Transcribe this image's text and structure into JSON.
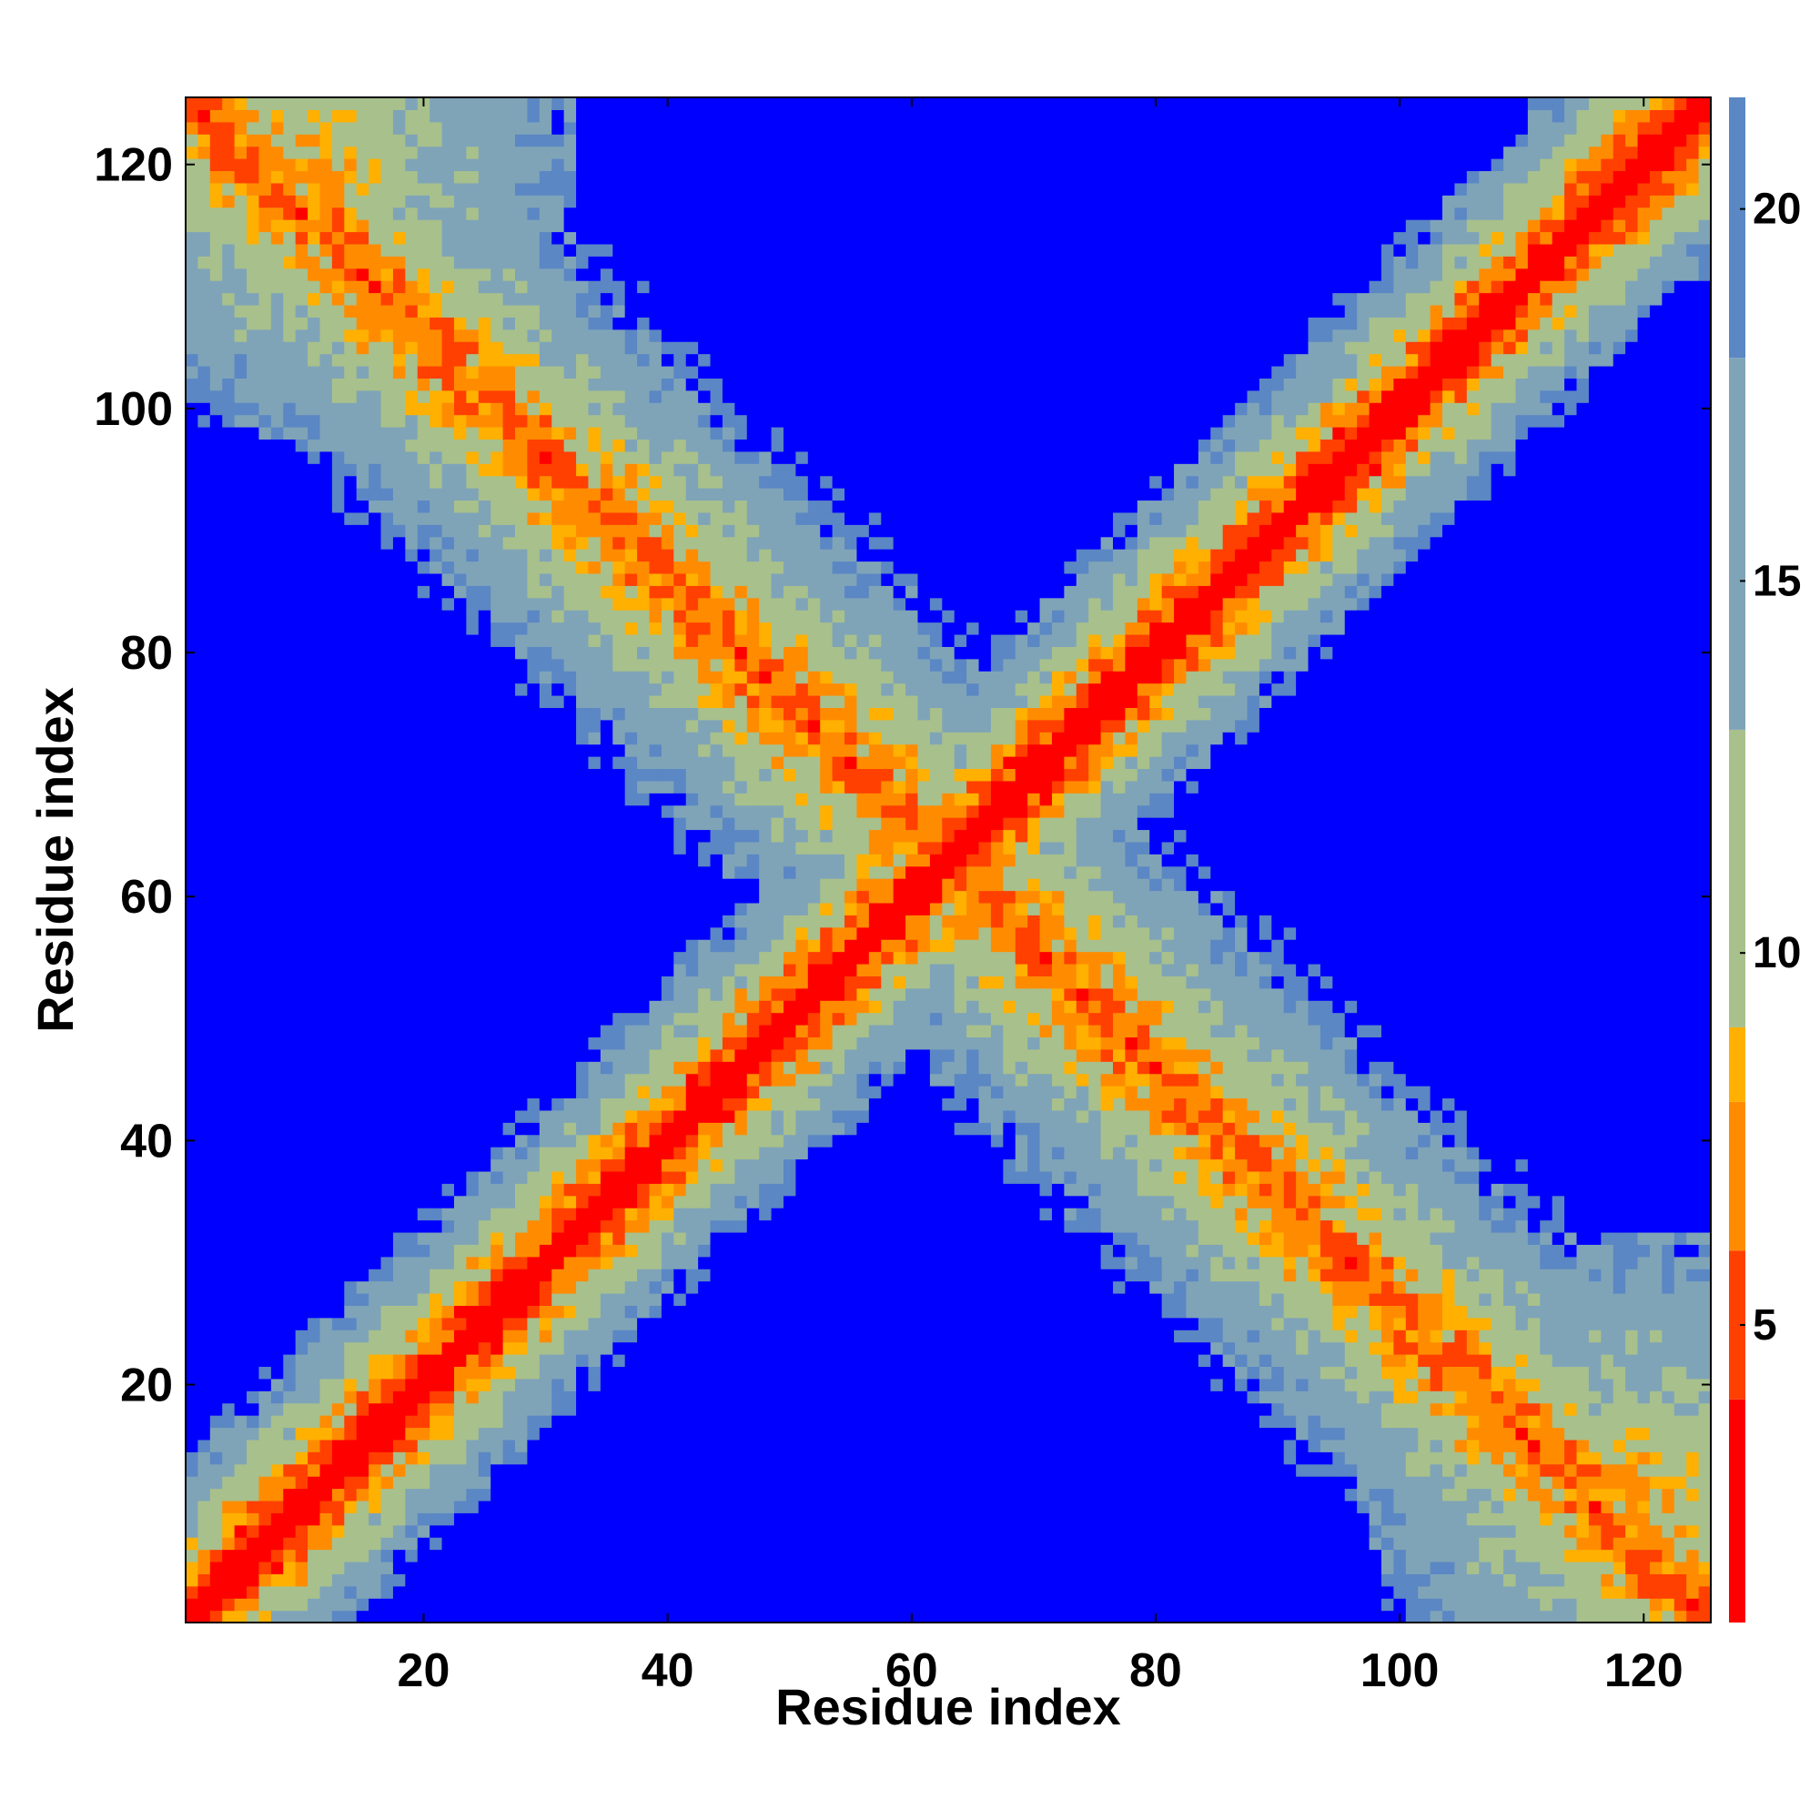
{
  "chart_data": {
    "type": "heatmap",
    "title": "",
    "xlabel": "Residue index",
    "ylabel": "Residue index",
    "n_residues": 125,
    "xlim": [
      1,
      125
    ],
    "ylim": [
      1,
      125
    ],
    "x_ticks": [
      20,
      40,
      60,
      80,
      100,
      120
    ],
    "y_ticks": [
      20,
      40,
      60,
      80,
      100,
      120
    ],
    "colorbar": {
      "ticks": [
        5,
        10,
        15,
        20
      ],
      "range": [
        1,
        21.5
      ],
      "colors": [
        "#ff0000",
        "#ff4000",
        "#ff8c00",
        "#ffb000",
        "#a8c08c",
        "#7fa4b8",
        "#5b87c4",
        "#0000ff"
      ],
      "levels": [
        1,
        4,
        6,
        8,
        9,
        13,
        18,
        21.5
      ]
    },
    "structure": {
      "diagonal_band_width_residues": 12,
      "contact_map": "symmetric distance map with a main diagonal and an anti-diagonal contact band"
    }
  }
}
